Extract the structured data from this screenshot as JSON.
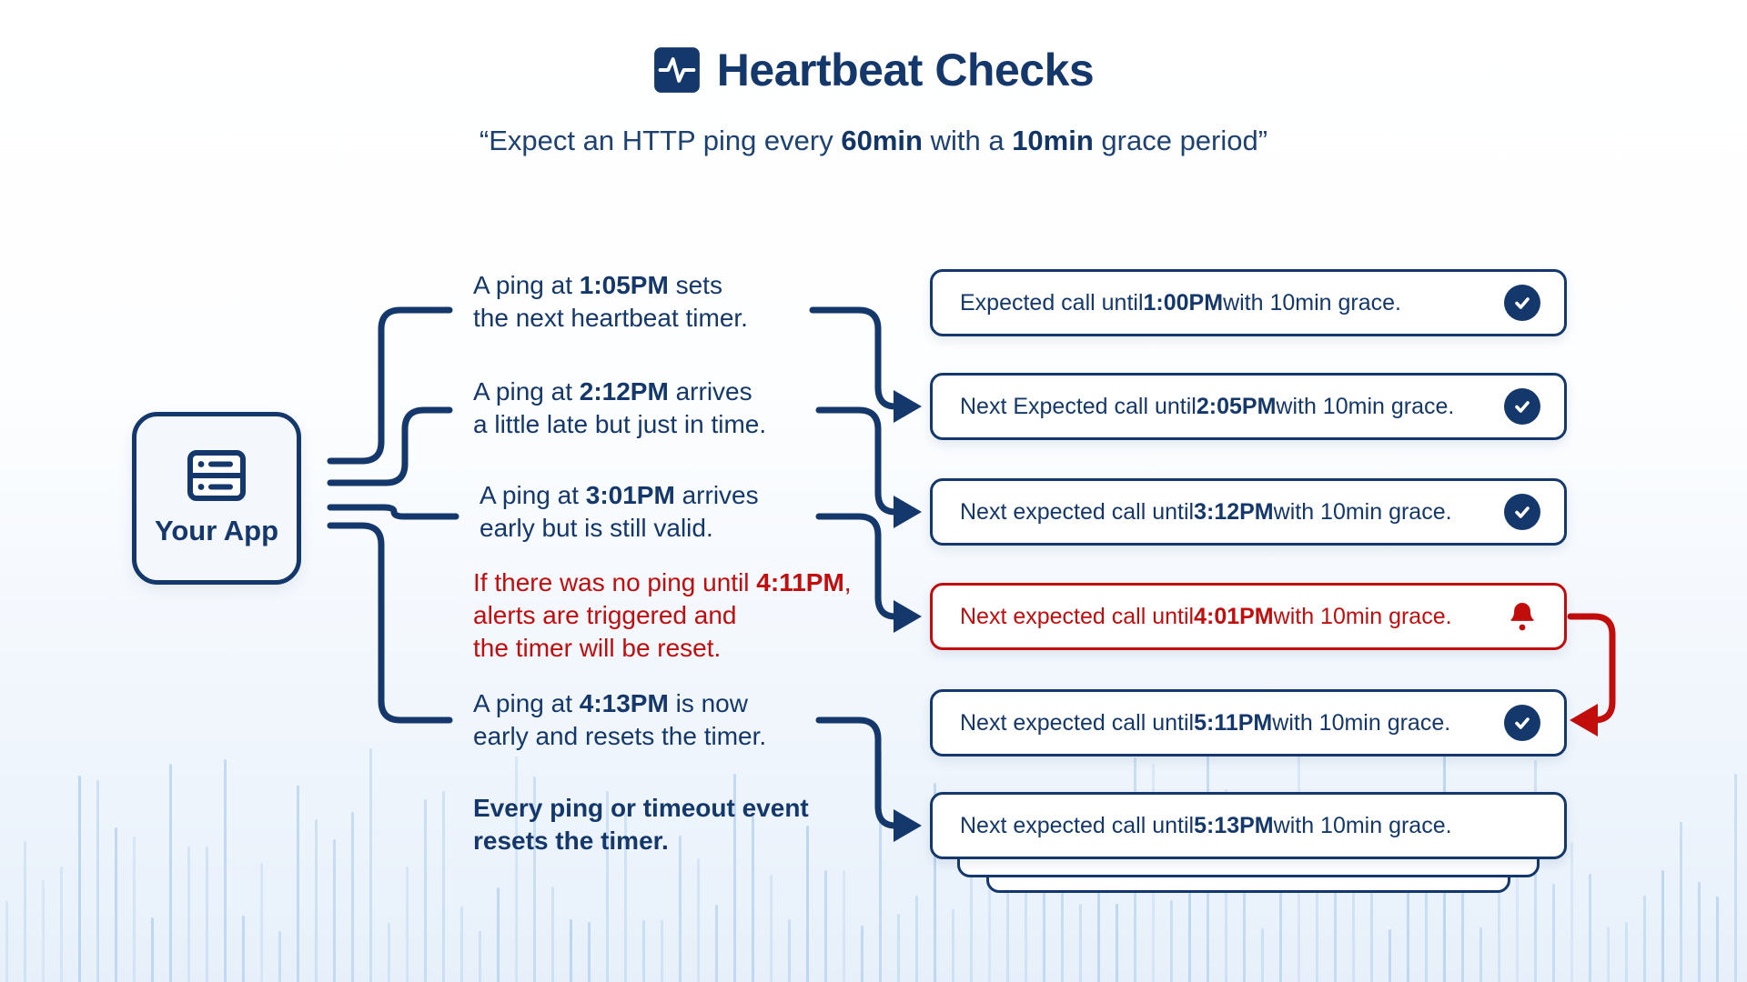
{
  "header": {
    "title": "Heartbeat Checks",
    "subtitle": {
      "pre": "“Expect an HTTP ping every ",
      "bold1": "60min",
      "mid": " with a ",
      "bold2": "10min",
      "post": " grace period”"
    }
  },
  "app_node": {
    "label": "Your App",
    "icon": "server-icon"
  },
  "annotations": [
    {
      "variant": "normal",
      "lines": [
        {
          "pre": "A ping at ",
          "bold": "1:05PM",
          "post": " sets"
        },
        {
          "pre": "the next heartbeat timer."
        }
      ]
    },
    {
      "variant": "normal",
      "lines": [
        {
          "pre": "A ping at ",
          "bold": "2:12PM",
          "post": " arrives"
        },
        {
          "pre": "a little late but just in time."
        }
      ]
    },
    {
      "variant": "normal",
      "lines": [
        {
          "pre": "A ping at ",
          "bold": "3:01PM",
          "post": " arrives"
        },
        {
          "pre": "early but is still valid."
        }
      ]
    },
    {
      "variant": "alert",
      "lines": [
        {
          "pre": "If there was no ping until ",
          "bold": "4:11PM",
          "post": ","
        },
        {
          "pre": "alerts are triggered and"
        },
        {
          "pre": "the timer will be reset."
        }
      ]
    },
    {
      "variant": "normal",
      "lines": [
        {
          "pre": "A ping at ",
          "bold": "4:13PM",
          "post": " is now"
        },
        {
          "pre": "early and resets the timer."
        }
      ]
    },
    {
      "variant": "emphasis",
      "lines": [
        {
          "pre": "Every ping or timeout event"
        },
        {
          "pre": "resets the timer."
        }
      ]
    }
  ],
  "status_boxes": [
    {
      "pre": "Expected call until ",
      "bold": "1:00PM",
      "post": " with 10min grace.",
      "icon": "check-circle",
      "variant": "ok"
    },
    {
      "pre": "Next Expected call until ",
      "bold": "2:05PM",
      "post": " with 10min grace.",
      "icon": "check-circle",
      "variant": "ok"
    },
    {
      "pre": "Next expected call until ",
      "bold": "3:12PM",
      "post": " with 10min grace.",
      "icon": "check-circle",
      "variant": "ok"
    },
    {
      "pre": "Next expected call until ",
      "bold": "4:01PM",
      "post": " with 10min grace.",
      "icon": "bell",
      "variant": "alert"
    },
    {
      "pre": "Next expected call until ",
      "bold": "5:11PM",
      "post": " with 10min grace.",
      "icon": "check-circle",
      "variant": "ok"
    },
    {
      "pre": "Next expected call until ",
      "bold": "5:13PM",
      "post": " with 10min grace.",
      "icon": "none",
      "variant": "ok"
    }
  ],
  "colors": {
    "navy": "#14386b",
    "red": "#c20d0d",
    "line_blue": "#aecdee",
    "app_box_bg": "#f4f7fb",
    "card_bg": "#ffffff"
  }
}
